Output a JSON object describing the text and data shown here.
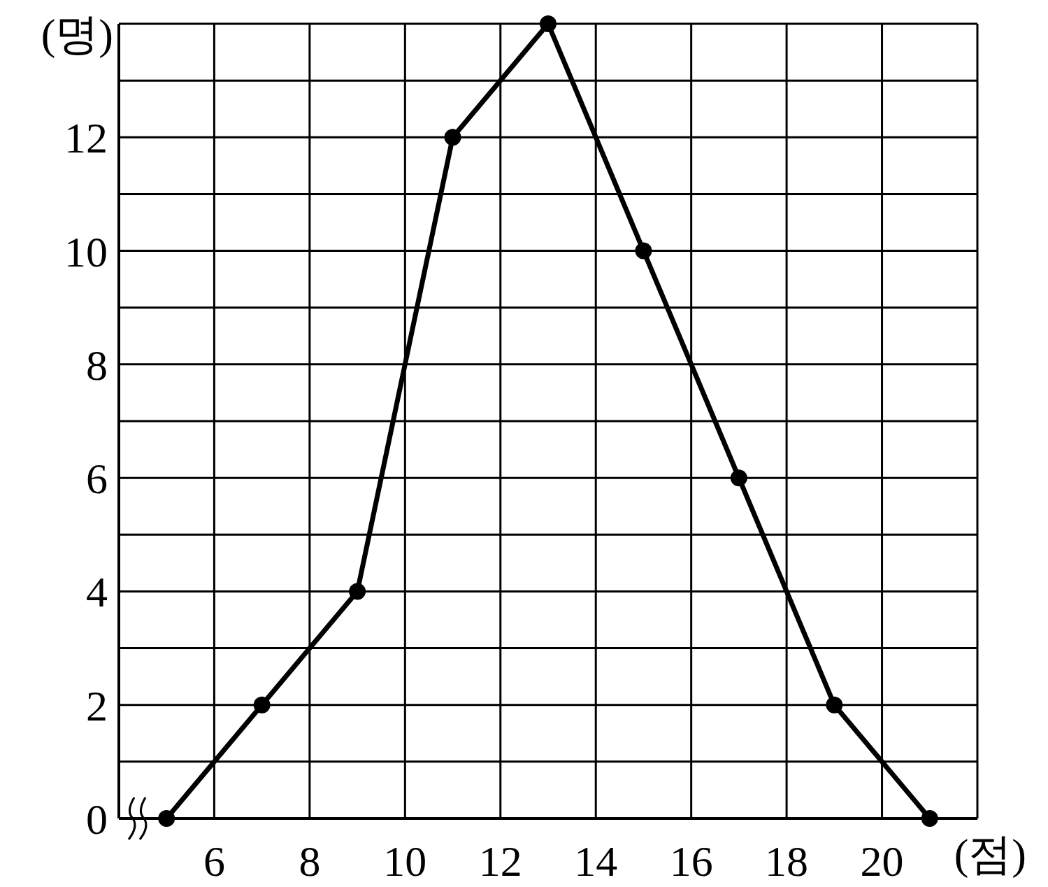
{
  "chart_data": {
    "type": "line",
    "xlabel": "(점)",
    "ylabel": "(명)",
    "x": [
      5,
      7,
      9,
      11,
      13,
      15,
      17,
      19,
      21
    ],
    "series": [
      {
        "color": "#000000",
        "values": [
          0,
          2,
          4,
          12,
          14,
          10,
          6,
          2,
          0
        ]
      }
    ],
    "xlim": [
      4,
      22
    ],
    "xticks": [
      {
        "value": 4,
        "label": null
      },
      6,
      8,
      10,
      12,
      14,
      16,
      18,
      20,
      {
        "value": 22,
        "label": null
      }
    ],
    "ylim": [
      0,
      14
    ],
    "yticks": [
      0,
      {
        "value": 1,
        "label": null
      },
      2,
      {
        "value": 3,
        "label": null
      },
      4,
      {
        "value": 5,
        "label": null
      },
      6,
      {
        "value": 7,
        "label": null
      },
      8,
      {
        "value": 9,
        "label": null
      },
      10,
      {
        "value": 11,
        "label": null
      },
      12,
      {
        "value": 13,
        "label": null
      },
      {
        "value": 14,
        "label": null
      }
    ],
    "grid": true,
    "marker": "circle",
    "line_style": "solid"
  }
}
